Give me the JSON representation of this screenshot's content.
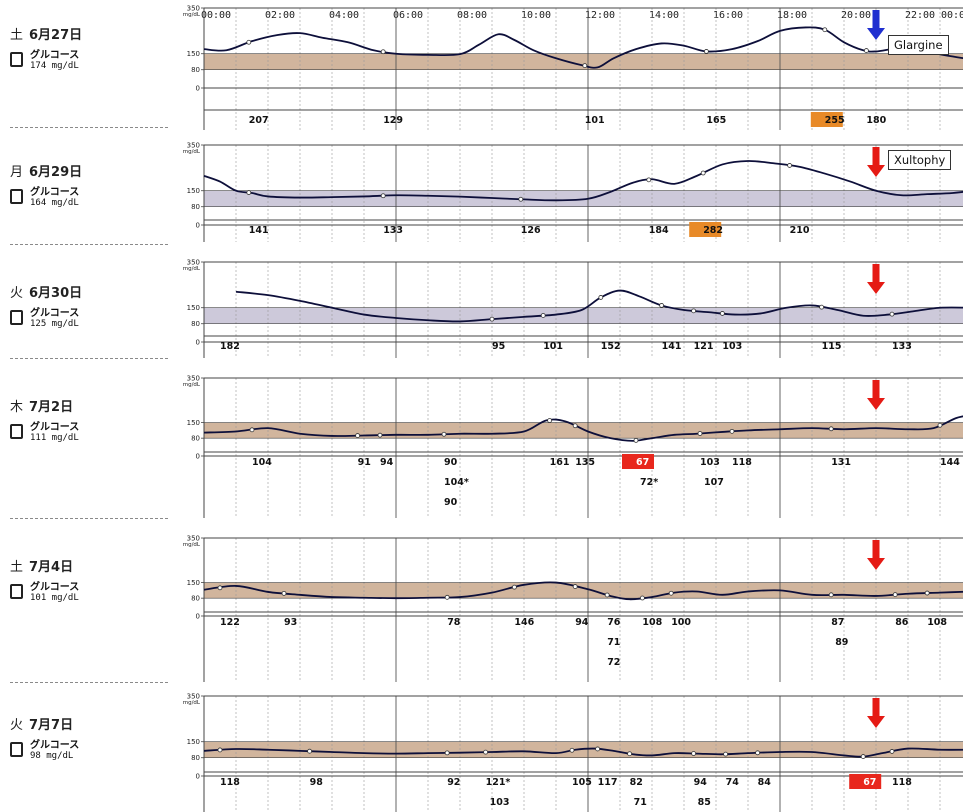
{
  "hour_labels": [
    "00:00",
    "02:00",
    "04:00",
    "06:00",
    "08:00",
    "10:00",
    "12:00",
    "14:00",
    "16:00",
    "18:00",
    "20:00",
    "22:00",
    "00:00"
  ],
  "y_unit": "mg/dL",
  "band_colors": [
    "#c9a88c",
    "#c4bfd3",
    "#c4bfd3",
    "#c9a88c",
    "#c9a88c",
    "#c9a88c"
  ],
  "colors": {
    "curve": "#0d0f3a",
    "arrow_blue": "#1f2fd0",
    "arrow_red": "#e51a14",
    "hl_red": "#e8271d",
    "hl_orange": "#e88a28"
  },
  "chart_data": [
    {
      "type": "line",
      "date": "土 6月27日",
      "date_day": "土",
      "date_md": "6月27日",
      "glucose_label": "グルコース",
      "glucose_value": "174 mg/dL",
      "y_ticks": [
        350,
        150,
        80,
        0
      ],
      "ylim": [
        0,
        350
      ],
      "target_range": [
        80,
        150
      ],
      "annotation": {
        "text": "Glargine",
        "arrow": "blue",
        "time": 21.0
      },
      "x": [
        0,
        0.7,
        1.5,
        2.3,
        3,
        3.7,
        4.5,
        5.3,
        6,
        7,
        8,
        8.6,
        9.2,
        9.7,
        10.3,
        11,
        11.8,
        12.3,
        12.8,
        13.5,
        14.3,
        15,
        15.7,
        16.5,
        17.3,
        18,
        18.8,
        19.4,
        20,
        20.6,
        21,
        21.8,
        22.5,
        23.3,
        24
      ],
      "y": [
        170,
        165,
        205,
        232,
        240,
        220,
        200,
        165,
        150,
        145,
        148,
        190,
        235,
        210,
        165,
        130,
        100,
        90,
        130,
        170,
        195,
        185,
        160,
        170,
        205,
        250,
        265,
        255,
        200,
        165,
        160,
        175,
        160,
        140,
        125
      ],
      "readings": [
        {
          "time": 1.4,
          "value": "207"
        },
        {
          "time": 5.6,
          "value": "129"
        },
        {
          "time": 11.9,
          "value": "101"
        },
        {
          "time": 15.7,
          "value": "165"
        },
        {
          "time": 19.4,
          "value": "255",
          "hl": "orange"
        },
        {
          "time": 20.7,
          "value": "180"
        }
      ]
    },
    {
      "type": "line",
      "date": "月 6月29日",
      "date_day": "月",
      "date_md": "6月29日",
      "glucose_label": "グルコース",
      "glucose_value": "164 mg/dL",
      "y_ticks": [
        350,
        150,
        80,
        0
      ],
      "ylim": [
        0,
        350
      ],
      "target_range": [
        80,
        150
      ],
      "annotation": {
        "text": "Xultophy",
        "arrow": "red",
        "time": 21.0
      },
      "x": [
        0,
        0.5,
        1,
        1.5,
        2,
        3,
        4,
        5,
        6,
        7,
        8,
        9,
        10,
        11,
        12,
        12.7,
        13.4,
        14,
        14.7,
        15.4,
        16.2,
        17,
        17.8,
        18.6,
        19.4,
        20.2,
        21,
        21.8,
        22.6,
        23.4,
        24
      ],
      "y": [
        215,
        190,
        150,
        140,
        125,
        120,
        122,
        125,
        130,
        128,
        124,
        118,
        112,
        108,
        115,
        145,
        185,
        200,
        180,
        215,
        265,
        280,
        270,
        255,
        225,
        190,
        150,
        130,
        135,
        140,
        150
      ],
      "readings": [
        {
          "time": 1.4,
          "value": "141"
        },
        {
          "time": 5.6,
          "value": "133"
        },
        {
          "time": 9.9,
          "value": "126"
        },
        {
          "time": 13.9,
          "value": "184"
        },
        {
          "time": 15.6,
          "value": "282",
          "hl": "orange"
        },
        {
          "time": 18.3,
          "value": "210"
        }
      ]
    },
    {
      "type": "line",
      "date": "火 6月30日",
      "date_day": "火",
      "date_md": "6月30日",
      "glucose_label": "グルコース",
      "glucose_value": "125 mg/dL",
      "y_ticks": [
        350,
        150,
        80,
        0
      ],
      "ylim": [
        0,
        350
      ],
      "target_range": [
        80,
        150
      ],
      "annotation": {
        "text": "",
        "arrow": "red",
        "time": 21.0
      },
      "x": [
        1,
        2,
        3,
        4,
        5,
        6,
        7,
        8,
        9,
        10,
        11,
        11.8,
        12.4,
        13,
        13.6,
        14.3,
        15,
        15.8,
        16.6,
        17.4,
        18.2,
        19,
        19.8,
        20.6,
        21.4,
        22.2,
        23,
        24
      ],
      "y": [
        220,
        205,
        180,
        150,
        120,
        105,
        95,
        90,
        100,
        110,
        120,
        140,
        195,
        225,
        200,
        160,
        140,
        130,
        120,
        125,
        150,
        160,
        140,
        115,
        120,
        135,
        150,
        150
      ],
      "readings": [
        {
          "time": 0.5,
          "value": "182"
        },
        {
          "time": 9.0,
          "value": "95"
        },
        {
          "time": 10.6,
          "value": "101"
        },
        {
          "time": 12.4,
          "value": "152"
        },
        {
          "time": 14.3,
          "value": "141"
        },
        {
          "time": 15.3,
          "value": "121"
        },
        {
          "time": 16.2,
          "value": "103"
        },
        {
          "time": 19.3,
          "value": "115"
        },
        {
          "time": 21.5,
          "value": "133"
        }
      ]
    },
    {
      "type": "line",
      "date": "木 7月2日",
      "date_day": "木",
      "date_md": "7月2日",
      "glucose_label": "グルコース",
      "glucose_value": "111 mg/dL",
      "y_ticks": [
        350,
        150,
        80,
        0
      ],
      "ylim": [
        0,
        350
      ],
      "target_range": [
        80,
        150
      ],
      "annotation": {
        "text": "",
        "arrow": "red",
        "time": 21.0
      },
      "x": [
        0,
        1,
        2,
        3,
        4,
        5,
        6,
        7,
        8,
        9,
        10,
        10.7,
        11.3,
        12,
        12.7,
        13.4,
        14,
        14.7,
        15.4,
        16.2,
        17,
        18,
        19,
        20,
        21,
        22,
        22.8,
        23.5,
        24
      ],
      "y": [
        105,
        110,
        125,
        100,
        90,
        92,
        95,
        95,
        100,
        100,
        110,
        160,
        155,
        110,
        80,
        68,
        80,
        95,
        100,
        108,
        115,
        120,
        125,
        120,
        125,
        120,
        125,
        170,
        185
      ],
      "readings": [
        {
          "time": 1.5,
          "value": "104"
        },
        {
          "time": 4.8,
          "value": "91"
        },
        {
          "time": 5.5,
          "value": "94"
        },
        {
          "time": 7.5,
          "sub": [
            "90",
            "104*",
            "90"
          ]
        },
        {
          "time": 10.8,
          "value": "161"
        },
        {
          "time": 11.6,
          "value": "135"
        },
        {
          "time": 13.5,
          "value": "67",
          "hl": "red",
          "sub2": "72*"
        },
        {
          "time": 15.5,
          "value": "103",
          "sub2": "107"
        },
        {
          "time": 16.5,
          "value": "118"
        },
        {
          "time": 19.6,
          "value": "131"
        },
        {
          "time": 23.0,
          "value": "144"
        }
      ]
    },
    {
      "type": "line",
      "date": "土 7月4日",
      "date_day": "土",
      "date_md": "7月4日",
      "glucose_label": "グルコース",
      "glucose_value": "101 mg/dL",
      "y_ticks": [
        350,
        150,
        80,
        0
      ],
      "ylim": [
        0,
        350
      ],
      "target_range": [
        80,
        150
      ],
      "annotation": {
        "text": "",
        "arrow": "red",
        "time": 21.0
      },
      "x": [
        0,
        1,
        2,
        3,
        4,
        5,
        6,
        7,
        8,
        9,
        10,
        11,
        12,
        12.7,
        13.3,
        14,
        14.7,
        15.4,
        16.2,
        17,
        18,
        19,
        20,
        21,
        22,
        23,
        24
      ],
      "y": [
        118,
        135,
        108,
        95,
        85,
        82,
        80,
        82,
        85,
        105,
        140,
        150,
        120,
        90,
        75,
        85,
        105,
        110,
        95,
        110,
        115,
        95,
        95,
        90,
        100,
        105,
        110
      ],
      "readings": [
        {
          "time": 0.5,
          "value": "122"
        },
        {
          "time": 2.5,
          "value": "93"
        },
        {
          "time": 7.6,
          "value": "78"
        },
        {
          "time": 9.7,
          "value": "146"
        },
        {
          "time": 11.6,
          "value": "94"
        },
        {
          "time": 12.6,
          "value": "76",
          "sub": [
            "71",
            "72"
          ]
        },
        {
          "time": 13.7,
          "value": "108"
        },
        {
          "time": 14.6,
          "value": "100"
        },
        {
          "time": 19.6,
          "value": "87",
          "sub2": "89"
        },
        {
          "time": 21.6,
          "value": "86"
        },
        {
          "time": 22.6,
          "value": "108"
        }
      ]
    },
    {
      "type": "line",
      "date": "火 7月7日",
      "date_day": "火",
      "date_md": "7月7日",
      "glucose_label": "グルコース",
      "glucose_value": "98 mg/dL",
      "y_ticks": [
        350,
        150,
        80,
        0
      ],
      "ylim": [
        0,
        350
      ],
      "target_range": [
        80,
        150
      ],
      "annotation": {
        "text": "",
        "arrow": "red",
        "time": 21.0
      },
      "x": [
        0,
        1,
        2,
        3,
        4,
        5,
        6,
        7,
        8,
        9,
        10,
        11,
        11.6,
        12.2,
        12.8,
        13.4,
        14,
        14.7,
        15.4,
        16.2,
        17,
        18,
        19,
        20,
        20.6,
        21.2,
        22,
        23,
        24
      ],
      "y": [
        110,
        118,
        115,
        110,
        105,
        100,
        98,
        100,
        102,
        105,
        108,
        100,
        115,
        120,
        110,
        95,
        90,
        100,
        98,
        95,
        100,
        105,
        105,
        90,
        85,
        100,
        120,
        115,
        115
      ],
      "readings": [
        {
          "time": 0.5,
          "value": "118"
        },
        {
          "time": 3.3,
          "value": "98"
        },
        {
          "time": 7.6,
          "value": "92"
        },
        {
          "time": 8.8,
          "value": "121*",
          "sub2": "103"
        },
        {
          "time": 11.5,
          "value": "105"
        },
        {
          "time": 12.3,
          "value": "117"
        },
        {
          "time": 13.3,
          "value": "82",
          "sub2": "71"
        },
        {
          "time": 15.3,
          "value": "94",
          "sub2": "85"
        },
        {
          "time": 16.3,
          "value": "74"
        },
        {
          "time": 17.3,
          "value": "84"
        },
        {
          "time": 20.6,
          "value": "67",
          "hl": "red"
        },
        {
          "time": 21.5,
          "value": "118"
        }
      ]
    }
  ]
}
